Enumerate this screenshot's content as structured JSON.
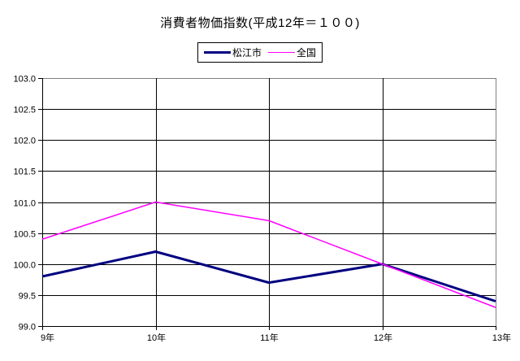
{
  "chart_data": {
    "type": "line",
    "title": "消費者物価指数(平成12年＝１００)",
    "categories": [
      "9年",
      "10年",
      "11年",
      "12年",
      "13年"
    ],
    "series": [
      {
        "name": "松江市",
        "color": "#000080",
        "line_width": 3,
        "values": [
          99.8,
          100.2,
          99.7,
          100.0,
          99.4
        ]
      },
      {
        "name": "全国",
        "color": "#FF00FF",
        "line_width": 1.5,
        "values": [
          100.4,
          101.0,
          100.7,
          100.0,
          99.3
        ]
      }
    ],
    "xlabel": "",
    "ylabel": "",
    "ylim": [
      99.0,
      103.0
    ],
    "ytick_step": 0.5,
    "ytick_labels": [
      "99.0",
      "99.5",
      "100.0",
      "100.5",
      "101.0",
      "101.5",
      "102.0",
      "102.5",
      "103.0"
    ],
    "grid": true,
    "legend_position": "top-center",
    "colors": {
      "axis": "#000000",
      "gridline": "#000000",
      "plot_border": "#808080",
      "text": "#000000",
      "background": "#FFFFFF"
    }
  }
}
